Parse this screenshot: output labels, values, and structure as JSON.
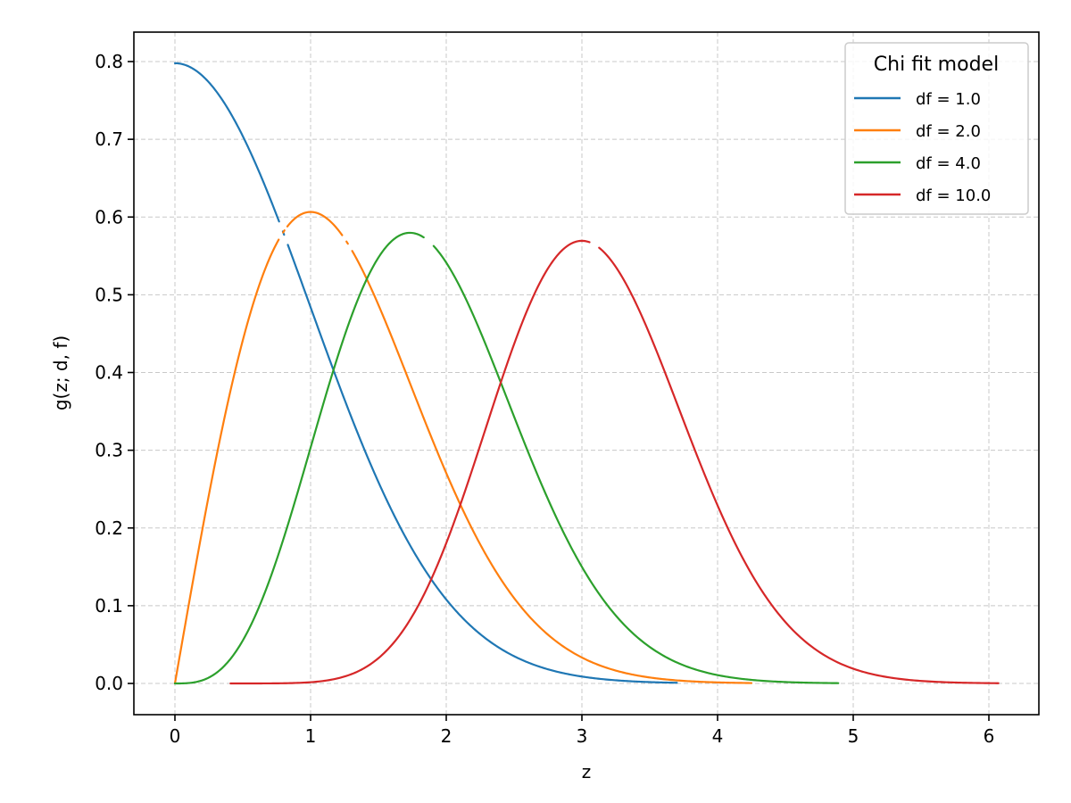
{
  "chart_data": {
    "type": "line",
    "title": "",
    "xlabel": "z",
    "ylabel": "g(z; d, f)",
    "xlim": [
      -0.3,
      6.36
    ],
    "ylim": [
      -0.04,
      0.84
    ],
    "xticks": [
      0,
      1,
      2,
      3,
      4,
      5,
      6
    ],
    "xtick_labels": [
      "0",
      "1",
      "2",
      "3",
      "4",
      "5",
      "6"
    ],
    "yticks": [
      0.0,
      0.1,
      0.2,
      0.3,
      0.4,
      0.5,
      0.6,
      0.7,
      0.8
    ],
    "ytick_labels": [
      "0.0",
      "0.1",
      "0.2",
      "0.3",
      "0.4",
      "0.5",
      "0.6",
      "0.7",
      "0.8"
    ],
    "grid": true,
    "grid_style": "dashed",
    "legend": {
      "title": "Chi fit model",
      "position": "upper right",
      "entries": [
        "df = 1.0",
        "df = 2.0",
        "df = 4.0",
        "df = 10.0"
      ]
    },
    "series": [
      {
        "name": "df = 1.0",
        "df": 1,
        "color": "#1f77b4",
        "x_range": [
          0.0,
          3.7
        ],
        "x": [
          0.0,
          0.5,
          1.0,
          1.5,
          2.0,
          2.5,
          3.0,
          3.5,
          3.7
        ],
        "y": [
          0.798,
          0.704,
          0.484,
          0.259,
          0.108,
          0.035,
          0.009,
          0.002,
          0.001
        ]
      },
      {
        "name": "df = 2.0",
        "df": 2,
        "color": "#ff7f0e",
        "x_range": [
          0.0,
          4.25
        ],
        "x": [
          0.0,
          0.5,
          1.0,
          1.5,
          2.0,
          2.5,
          3.0,
          3.5,
          4.0,
          4.25
        ],
        "y": [
          0.0,
          0.441,
          0.607,
          0.487,
          0.271,
          0.11,
          0.033,
          0.008,
          0.001,
          0.0005
        ]
      },
      {
        "name": "df = 4.0",
        "df": 4,
        "color": "#2ca02c",
        "x_range": [
          0.0,
          4.89
        ],
        "x": [
          0.0,
          0.5,
          1.0,
          1.5,
          1.73,
          2.0,
          2.5,
          3.0,
          3.5,
          4.0,
          4.5,
          4.89
        ],
        "y": [
          0.0,
          0.055,
          0.303,
          0.547,
          0.58,
          0.541,
          0.344,
          0.15,
          0.045,
          0.011,
          0.002,
          0.0003
        ]
      },
      {
        "name": "df = 10.0",
        "df": 10,
        "color": "#d62728",
        "x_range": [
          0.41,
          6.07
        ],
        "x": [
          0.41,
          1.0,
          1.5,
          2.0,
          2.5,
          3.0,
          3.5,
          4.0,
          4.5,
          5.0,
          5.5,
          6.07
        ],
        "y": [
          0.0,
          0.002,
          0.032,
          0.181,
          0.437,
          0.569,
          0.455,
          0.227,
          0.071,
          0.019,
          0.004,
          0.0004
        ]
      }
    ]
  }
}
